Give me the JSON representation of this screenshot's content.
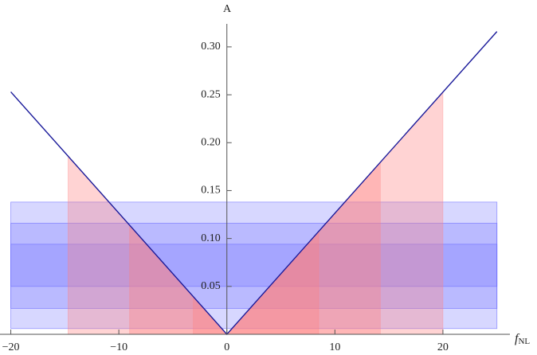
{
  "chart_data": {
    "type": "v-bands",
    "ylabel": "A",
    "xlabel": "f",
    "xlabel_sub": "NL",
    "xlim": [
      -21,
      26.2
    ],
    "ylim": [
      0,
      0.324
    ],
    "xticks": [
      {
        "value": -20,
        "label": "−20"
      },
      {
        "value": -10,
        "label": "−10"
      },
      0,
      10,
      20
    ],
    "yticks": [
      {
        "value": 0.05,
        "label": "0.05"
      },
      {
        "value": 0.1,
        "label": "0.10"
      },
      {
        "value": 0.15,
        "label": "0.15"
      },
      {
        "value": 0.2,
        "label": "0.20"
      },
      {
        "value": 0.25,
        "label": "0.25"
      },
      {
        "value": 0.3,
        "label": "0.30"
      }
    ],
    "line": {
      "color": "#1a1a9a",
      "x": [
        -20,
        0,
        25
      ],
      "values": [
        0.253,
        0,
        0.316
      ]
    },
    "red_regions": [
      [
        -14.7,
        20
      ],
      [
        -9,
        14.2
      ],
      [
        -3.1,
        8.5
      ]
    ],
    "red_color": "#ff8080",
    "blue_x": [
      -20,
      25
    ],
    "blue_bands": [
      [
        0.006,
        0.138
      ],
      [
        0.027,
        0.116
      ],
      [
        0.05,
        0.094
      ]
    ],
    "blue_color": "#6f6fff"
  }
}
